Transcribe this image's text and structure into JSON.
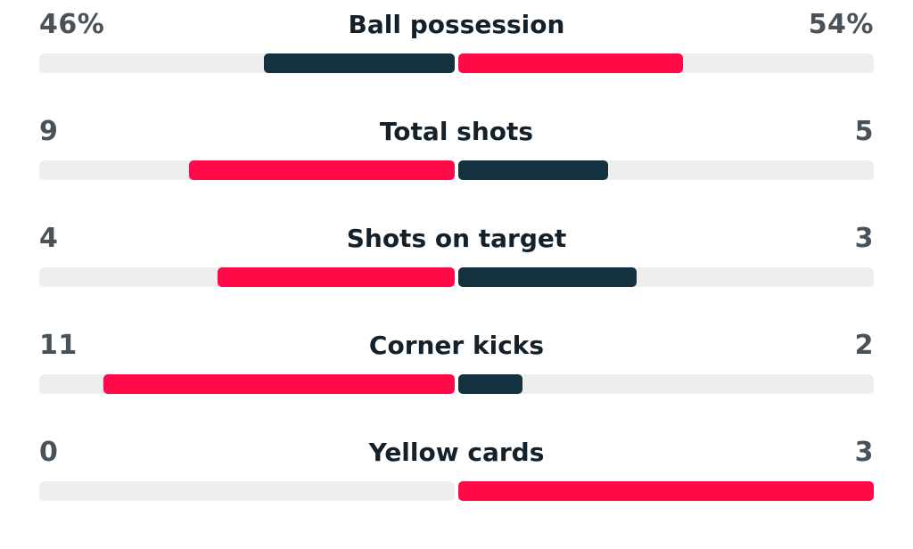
{
  "colors": {
    "home": "#13313f",
    "away": "#ff0a47",
    "track": "#eeeeee",
    "label": "#14212b",
    "value": "#4a5259"
  },
  "stats": [
    {
      "label": "Ball possession",
      "home_value": "46%",
      "away_value": "54%",
      "home_fraction": 0.46,
      "away_fraction": 0.54,
      "home_color": "#13313f",
      "away_color": "#ff0a47"
    },
    {
      "label": "Total shots",
      "home_value": "9",
      "away_value": "5",
      "home_fraction": 0.64,
      "away_fraction": 0.36,
      "home_color": "#ff0a47",
      "away_color": "#13313f"
    },
    {
      "label": "Shots on target",
      "home_value": "4",
      "away_value": "3",
      "home_fraction": 0.57,
      "away_fraction": 0.43,
      "home_color": "#ff0a47",
      "away_color": "#13313f"
    },
    {
      "label": "Corner kicks",
      "home_value": "11",
      "away_value": "2",
      "home_fraction": 0.846,
      "away_fraction": 0.154,
      "home_color": "#ff0a47",
      "away_color": "#13313f"
    },
    {
      "label": "Yellow cards",
      "home_value": "0",
      "away_value": "3",
      "home_fraction": 0.0,
      "away_fraction": 1.0,
      "home_color": "#ff0a47",
      "away_color": "#ff0a47"
    }
  ]
}
